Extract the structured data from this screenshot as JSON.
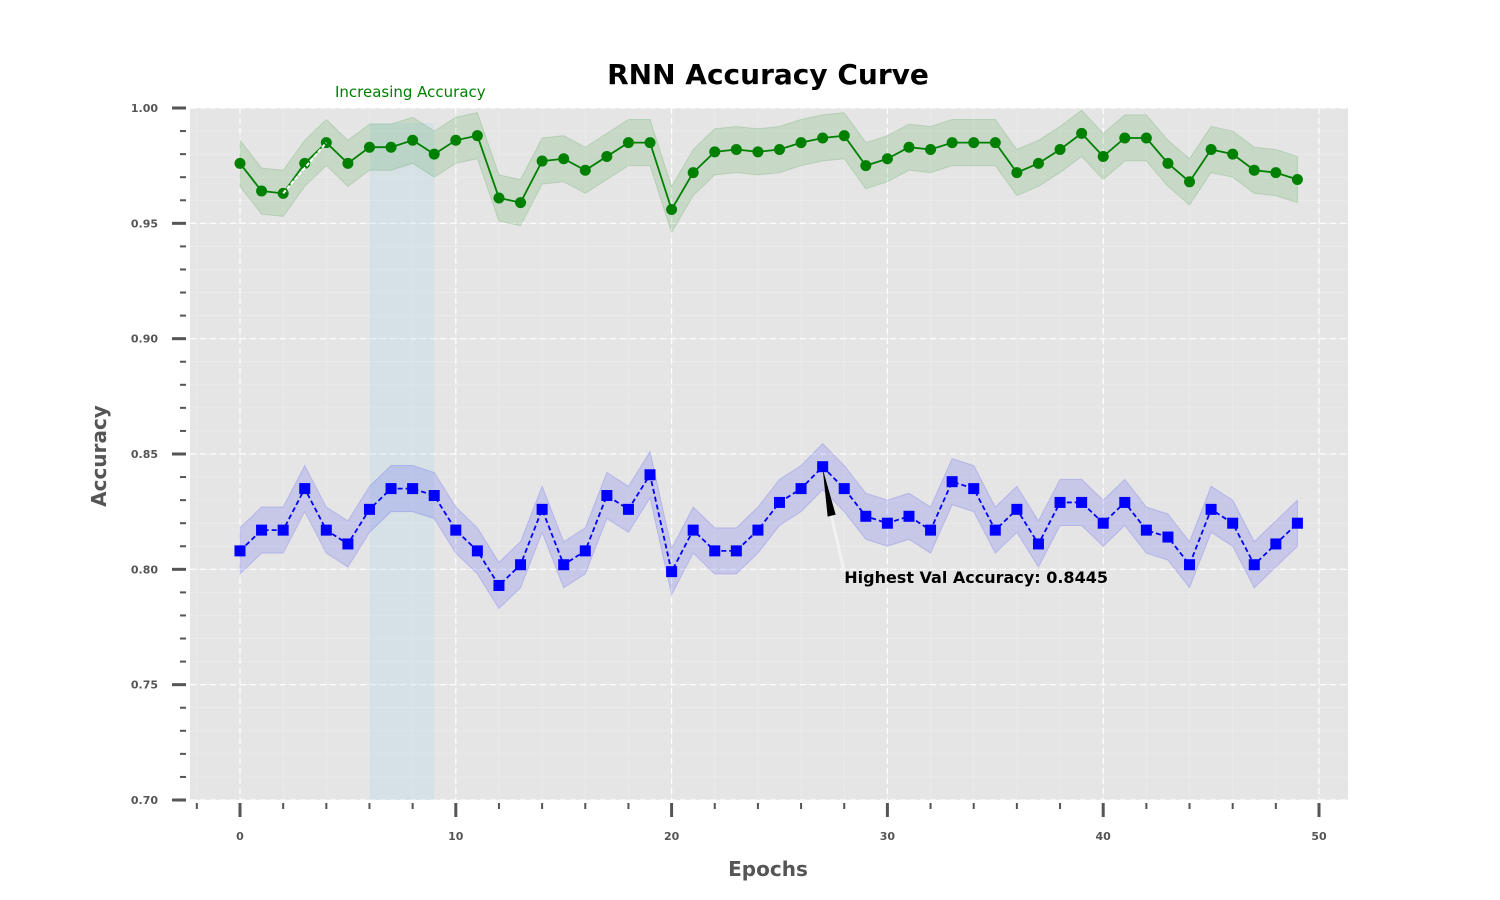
{
  "chart_data": {
    "type": "line",
    "title": "RNN Accuracy Curve",
    "xlabel": "Epochs",
    "ylabel": "Accuracy",
    "xlim": [
      -2,
      51
    ],
    "ylim": [
      0.7,
      1.0
    ],
    "xticks": [
      0,
      10,
      20,
      30,
      40,
      50
    ],
    "xtick_labels": [
      "0",
      "10",
      "20",
      "30",
      "40",
      "50"
    ],
    "yticks": [
      0.7,
      0.75,
      0.8,
      0.85,
      0.9,
      0.95,
      1.0
    ],
    "ytick_labels": [
      "0.70",
      "0.75",
      "0.80",
      "0.85",
      "0.90",
      "0.95",
      "1.00"
    ],
    "grid": true,
    "background": "#e5e5e5",
    "x": [
      0,
      1,
      2,
      3,
      4,
      5,
      6,
      7,
      8,
      9,
      10,
      11,
      12,
      13,
      14,
      15,
      16,
      17,
      18,
      19,
      20,
      21,
      22,
      23,
      24,
      25,
      26,
      27,
      28,
      29,
      30,
      31,
      32,
      33,
      34,
      35,
      36,
      37,
      38,
      39,
      40,
      41,
      42,
      43,
      44,
      45,
      46,
      47,
      48,
      49
    ],
    "series": [
      {
        "color": "#008000",
        "marker": "circle",
        "linestyle": "solid",
        "band": 0.01,
        "values": [
          0.976,
          0.964,
          0.963,
          0.976,
          0.985,
          0.976,
          0.983,
          0.983,
          0.986,
          0.98,
          0.986,
          0.988,
          0.961,
          0.959,
          0.977,
          0.978,
          0.973,
          0.979,
          0.985,
          0.985,
          0.956,
          0.972,
          0.981,
          0.982,
          0.981,
          0.982,
          0.985,
          0.987,
          0.988,
          0.975,
          0.978,
          0.983,
          0.982,
          0.985,
          0.985,
          0.985,
          0.972,
          0.976,
          0.982,
          0.989,
          0.979,
          0.987,
          0.987,
          0.976,
          0.968,
          0.982,
          0.98,
          0.973,
          0.972,
          0.969
        ]
      },
      {
        "color": "#0000ff",
        "marker": "square",
        "linestyle": "dashed",
        "band": 0.01,
        "values": [
          0.808,
          0.817,
          0.817,
          0.835,
          0.817,
          0.811,
          0.826,
          0.835,
          0.835,
          0.832,
          0.817,
          0.808,
          0.793,
          0.802,
          0.826,
          0.802,
          0.808,
          0.832,
          0.826,
          0.841,
          0.799,
          0.817,
          0.808,
          0.808,
          0.817,
          0.829,
          0.835,
          0.8445,
          0.835,
          0.823,
          0.82,
          0.823,
          0.817,
          0.838,
          0.835,
          0.817,
          0.826,
          0.811,
          0.829,
          0.829,
          0.82,
          0.829,
          0.817,
          0.814,
          0.802,
          0.826,
          0.82,
          0.802,
          0.811,
          0.82
        ]
      }
    ],
    "shaded_region": {
      "x_start": 6,
      "x_end": 9,
      "color": "#add8e6"
    },
    "annotations": [
      {
        "text": "Increasing Accuracy",
        "color": "#008000",
        "arrow_from": [
          2,
          0.963
        ],
        "arrow_to": [
          4,
          0.985
        ],
        "text_anchor_at": [
          4,
          1.003
        ]
      },
      {
        "text": "Highest Val Accuracy: 0.8445",
        "color": "#000000",
        "arrow_from": [
          28,
          0.797
        ],
        "arrow_to": [
          27,
          0.8445
        ],
        "text_anchor_at": [
          28,
          0.7955
        ]
      }
    ]
  }
}
